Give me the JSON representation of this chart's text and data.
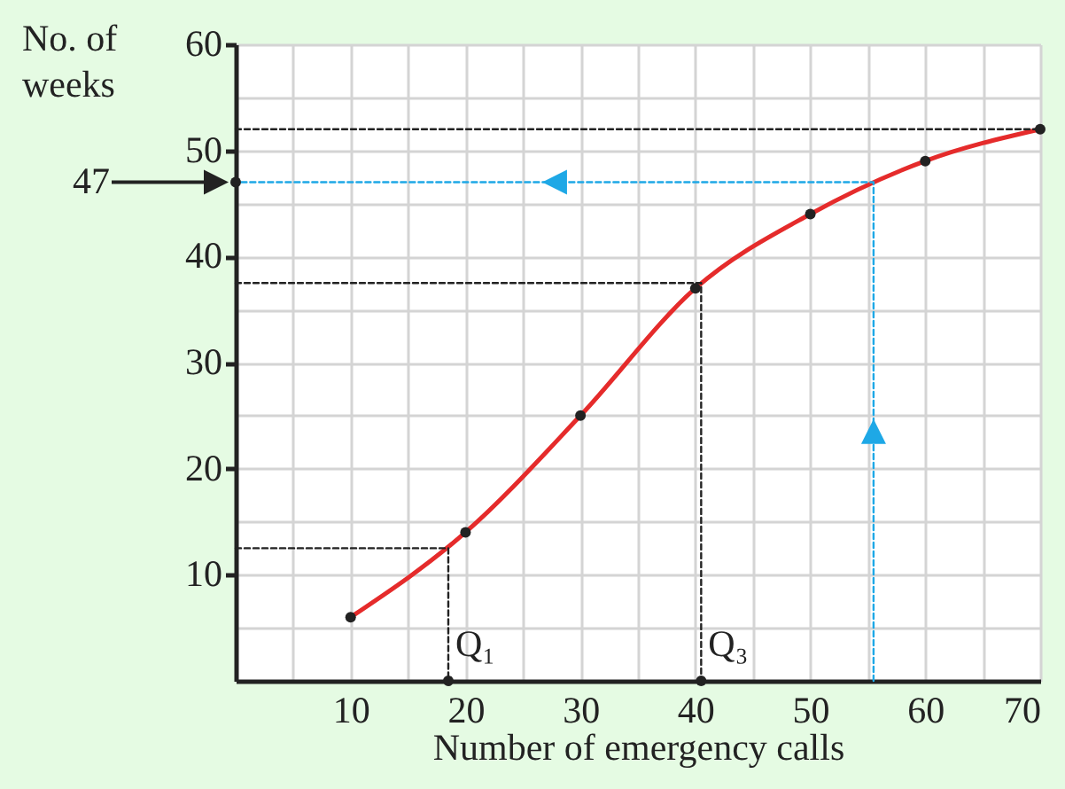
{
  "chart_data": {
    "type": "line",
    "xlabel": "Number of emergency calls",
    "ylabel": "No. of weeks",
    "xlim": [
      0,
      70
    ],
    "ylim": [
      0,
      60
    ],
    "xticks": [
      {
        "value": 5,
        "label": null
      },
      10,
      {
        "value": 15,
        "label": null
      },
      20,
      {
        "value": 25,
        "label": null
      },
      30,
      {
        "value": 35,
        "label": null
      },
      40,
      {
        "value": 45,
        "label": null
      },
      50,
      {
        "value": 55,
        "label": null
      },
      60,
      {
        "value": 65,
        "label": null
      },
      70
    ],
    "yticks": [
      {
        "value": 5,
        "label": null
      },
      10,
      {
        "value": 15,
        "label": null
      },
      20,
      {
        "value": 25,
        "label": null
      },
      30,
      {
        "value": 35,
        "label": null
      },
      40,
      {
        "value": 45,
        "label": null
      },
      50,
      {
        "value": 55,
        "label": null
      },
      60
    ],
    "grid": true,
    "annotations": [
      "47",
      {
        "text": "Q₁",
        "x": 18.5,
        "y": 0
      },
      {
        "text": "Q₃",
        "x": 40.5,
        "y": 0
      }
    ],
    "series": [
      {
        "color": "#e52b2b",
        "line_style": "solid",
        "x": [
          10,
          20,
          30,
          40,
          50,
          60,
          70
        ],
        "values": [
          6,
          14,
          25,
          37,
          44,
          49,
          52
        ]
      },
      {
        "type": "line",
        "color": "#222222",
        "line_style": "dashed",
        "x": [
          0,
          70
        ],
        "values": [
          52,
          52
        ]
      },
      {
        "type": "line",
        "color": "#222222",
        "line_style": "dashed",
        "x": [
          0,
          40.5,
          40.5
        ],
        "values": [
          37.5,
          37.5,
          0
        ]
      },
      {
        "type": "line",
        "color": "#222222",
        "line_style": "dashed",
        "x": [
          0,
          18.5,
          18.5
        ],
        "values": [
          12.5,
          12.5,
          0
        ]
      },
      {
        "type": "line",
        "color": "#1ea8e6",
        "line_style": "dashed",
        "x": [
          55.5,
          55.5,
          0
        ],
        "values": [
          0,
          47,
          47
        ]
      },
      {
        "type": "scatter",
        "color": "#222222",
        "x": [
          10,
          20,
          30,
          40,
          50,
          60,
          70,
          0,
          18.5,
          40.5
        ],
        "values": [
          6,
          14,
          25,
          37,
          44,
          49,
          52,
          47,
          0,
          0
        ]
      }
    ]
  }
}
